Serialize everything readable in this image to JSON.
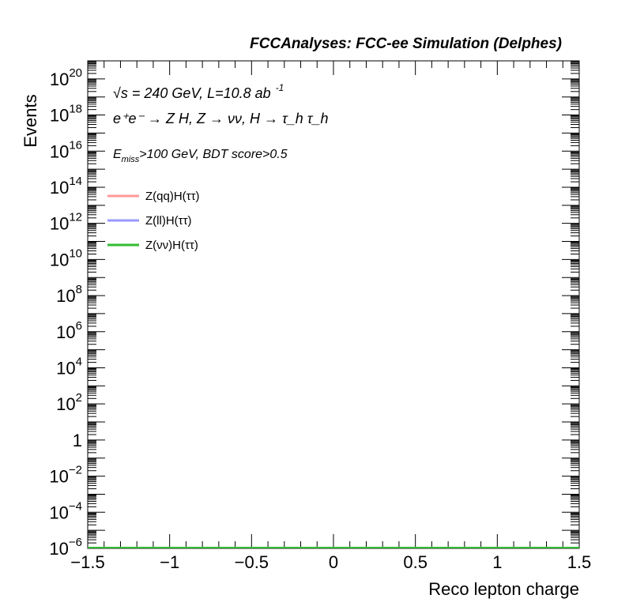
{
  "header": "FCCAnalyses: FCC-ee Simulation (Delphes)",
  "info": {
    "line1": "√s = 240 GeV, L=10.8 ab",
    "line1_sup": "-1",
    "line2": "e⁺e⁻ → Z H, Z  → νν, H → τ_h τ_h",
    "line3_e": "E",
    "line3_sub": "miss",
    "line3_rest": ">100 GeV, BDT score>0.5"
  },
  "chart_data": {
    "type": "line",
    "xlabel": "Reco lepton charge",
    "ylabel": "Events",
    "xlim": [
      -1.5,
      1.5
    ],
    "ylim_log10": [
      -6,
      21
    ],
    "yscale": "log",
    "x_ticks": [
      {
        "value": -1.5,
        "label": "−1.5"
      },
      {
        "value": -1,
        "label": "−1"
      },
      {
        "value": -0.5,
        "label": "−0.5"
      },
      {
        "value": 0,
        "label": "0"
      },
      {
        "value": 0.5,
        "label": "0.5"
      },
      {
        "value": 1,
        "label": "1"
      },
      {
        "value": 1.5,
        "label": "1.5"
      }
    ],
    "y_ticks": [
      {
        "exp": 20,
        "base": "10",
        "sup": "20"
      },
      {
        "exp": 18,
        "base": "10",
        "sup": "18"
      },
      {
        "exp": 16,
        "base": "10",
        "sup": "16"
      },
      {
        "exp": 14,
        "base": "10",
        "sup": "14"
      },
      {
        "exp": 12,
        "base": "10",
        "sup": "12"
      },
      {
        "exp": 10,
        "base": "10",
        "sup": "10"
      },
      {
        "exp": 8,
        "base": "10",
        "sup": "8"
      },
      {
        "exp": 6,
        "base": "10",
        "sup": "6"
      },
      {
        "exp": 4,
        "base": "10",
        "sup": "4"
      },
      {
        "exp": 2,
        "base": "10",
        "sup": "2"
      },
      {
        "exp": 0,
        "base": "1",
        "sup": ""
      },
      {
        "exp": -2,
        "base": "10",
        "sup": "−2"
      },
      {
        "exp": -4,
        "base": "10",
        "sup": "−4"
      },
      {
        "exp": -6,
        "base": "10",
        "sup": "−6"
      }
    ],
    "series": [
      {
        "name": "Z(qq)H(ττ)",
        "color": "#ff9999",
        "x": [
          -1.5,
          1.5
        ],
        "y": [
          1e-06,
          1e-06
        ]
      },
      {
        "name": "Z(ll)H(ττ)",
        "color": "#9999ff",
        "x": [
          -1.5,
          1.5
        ],
        "y": [
          1e-06,
          1e-06
        ]
      },
      {
        "name": "Z(νν)H(ττ)",
        "color": "#33bb33",
        "x": [
          -1.5,
          1.5
        ],
        "y": [
          1e-06,
          1e-06
        ]
      }
    ],
    "legend_position": "top-left",
    "grid": false
  }
}
